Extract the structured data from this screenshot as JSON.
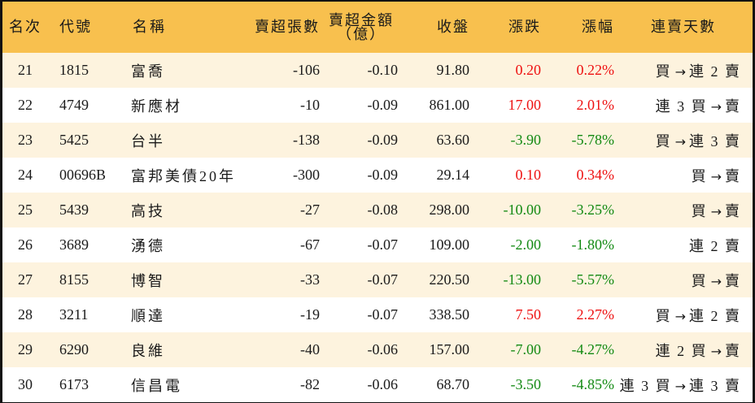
{
  "table": {
    "headers": {
      "rank": "名次",
      "code": "代號",
      "name": "名稱",
      "net_sell_shares": "賣超張數",
      "net_sell_amount_line1": "賣超金額",
      "net_sell_amount_line2": "（億）",
      "close": "收盤",
      "change": "漲跌",
      "change_pct": "漲幅",
      "streak": "連賣天數"
    },
    "colors": {
      "header_bg": "#F8C04E",
      "odd_row_bg": "#FDF3DE",
      "even_row_bg": "#FFFFFF",
      "up": "#EE1111",
      "down": "#138A13",
      "border": "#111111"
    },
    "rows": [
      {
        "rank": "21",
        "code": "1815",
        "name": "富喬",
        "shares": "-106",
        "amount": "-0.10",
        "close": "91.80",
        "change": "0.20",
        "pct": "0.22%",
        "dir": "up",
        "streak": "買 → 連 2 賣"
      },
      {
        "rank": "22",
        "code": "4749",
        "name": "新應材",
        "shares": "-10",
        "amount": "-0.09",
        "close": "861.00",
        "change": "17.00",
        "pct": "2.01%",
        "dir": "up",
        "streak": "連 3 買 → 賣"
      },
      {
        "rank": "23",
        "code": "5425",
        "name": "台半",
        "shares": "-138",
        "amount": "-0.09",
        "close": "63.60",
        "change": "-3.90",
        "pct": "-5.78%",
        "dir": "down",
        "streak": "買 → 連 3 賣"
      },
      {
        "rank": "24",
        "code": "00696B",
        "name": "富邦美債20年",
        "shares": "-300",
        "amount": "-0.09",
        "close": "29.14",
        "change": "0.10",
        "pct": "0.34%",
        "dir": "up",
        "streak": "買 → 賣"
      },
      {
        "rank": "25",
        "code": "5439",
        "name": "高技",
        "shares": "-27",
        "amount": "-0.08",
        "close": "298.00",
        "change": "-10.00",
        "pct": "-3.25%",
        "dir": "down",
        "streak": "買 → 賣"
      },
      {
        "rank": "26",
        "code": "3689",
        "name": "湧德",
        "shares": "-67",
        "amount": "-0.07",
        "close": "109.00",
        "change": "-2.00",
        "pct": "-1.80%",
        "dir": "down",
        "streak": "連 2 賣"
      },
      {
        "rank": "27",
        "code": "8155",
        "name": "博智",
        "shares": "-33",
        "amount": "-0.07",
        "close": "220.50",
        "change": "-13.00",
        "pct": "-5.57%",
        "dir": "down",
        "streak": "買 → 賣"
      },
      {
        "rank": "28",
        "code": "3211",
        "name": "順達",
        "shares": "-19",
        "amount": "-0.07",
        "close": "338.50",
        "change": "7.50",
        "pct": "2.27%",
        "dir": "up",
        "streak": "買 → 連 2 賣"
      },
      {
        "rank": "29",
        "code": "6290",
        "name": "良維",
        "shares": "-40",
        "amount": "-0.06",
        "close": "157.00",
        "change": "-7.00",
        "pct": "-4.27%",
        "dir": "down",
        "streak": "連 2 買 → 賣"
      },
      {
        "rank": "30",
        "code": "6173",
        "name": "信昌電",
        "shares": "-82",
        "amount": "-0.06",
        "close": "68.70",
        "change": "-3.50",
        "pct": "-4.85%",
        "dir": "down",
        "streak": "連 3 買 → 連 3 賣"
      }
    ]
  }
}
